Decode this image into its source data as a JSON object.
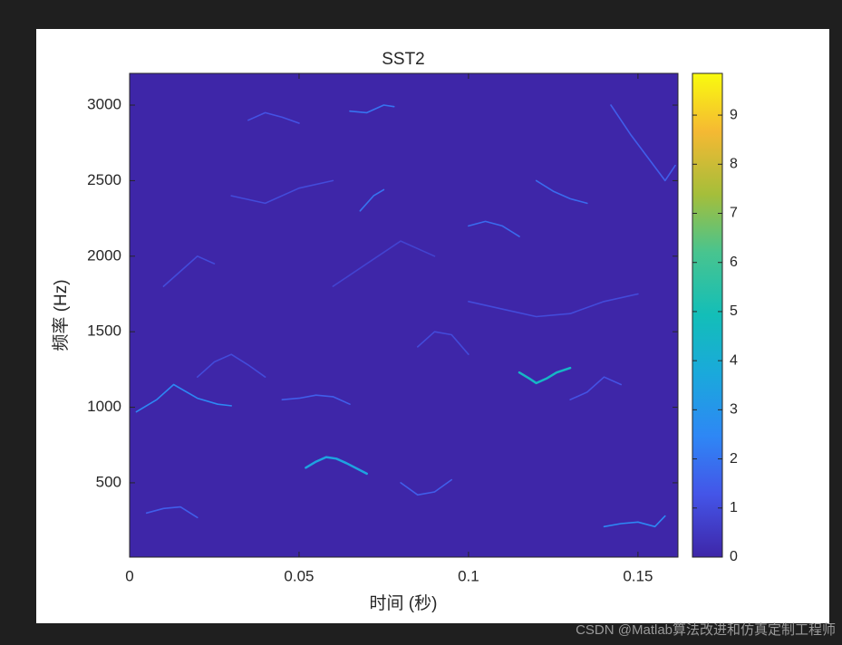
{
  "chart_data": {
    "type": "spectrogram",
    "title": "SST2",
    "xlabel": "时间 (秒)",
    "ylabel": "频率 (Hz)",
    "xlim": [
      0,
      0.1618
    ],
    "ylim": [
      8,
      3210
    ],
    "xticks": [
      0,
      0.05,
      0.1,
      0.15
    ],
    "yticks": [
      500,
      1000,
      1500,
      2000,
      2500,
      3000
    ],
    "colormap": "parula",
    "clim": [
      0,
      9.85
    ],
    "cticks": [
      0,
      1,
      2,
      3,
      4,
      5,
      6,
      7,
      8,
      9
    ],
    "ridges": [
      {
        "x": [
          0.002,
          0.008,
          0.013,
          0.02,
          0.026,
          0.03
        ],
        "y": [
          970,
          1050,
          1150,
          1060,
          1020,
          1010
        ],
        "value": 2.5
      },
      {
        "x": [
          0.052,
          0.055,
          0.058,
          0.061,
          0.064,
          0.07
        ],
        "y": [
          600,
          640,
          670,
          660,
          630,
          560
        ],
        "value": 3.5
      },
      {
        "x": [
          0.115,
          0.118,
          0.12,
          0.123,
          0.126,
          0.13
        ],
        "y": [
          1230,
          1190,
          1160,
          1190,
          1230,
          1260
        ],
        "value": 4.5
      },
      {
        "x": [
          0.065,
          0.07,
          0.075,
          0.078
        ],
        "y": [
          2960,
          2950,
          3000,
          2990
        ],
        "value": 2
      },
      {
        "x": [
          0.14,
          0.145,
          0.15,
          0.155,
          0.158
        ],
        "y": [
          210,
          230,
          240,
          210,
          280
        ],
        "value": 2.5
      },
      {
        "x": [
          0.045,
          0.05,
          0.055,
          0.06,
          0.065
        ],
        "y": [
          1050,
          1060,
          1080,
          1070,
          1020
        ],
        "value": 1.5
      },
      {
        "x": [
          0.1,
          0.105,
          0.11,
          0.115
        ],
        "y": [
          2200,
          2230,
          2200,
          2130
        ],
        "value": 1.8
      },
      {
        "x": [
          0.142,
          0.148,
          0.153,
          0.158,
          0.161
        ],
        "y": [
          3000,
          2800,
          2650,
          2500,
          2600
        ],
        "value": 1.5
      },
      {
        "x": [
          0.068,
          0.072,
          0.075
        ],
        "y": [
          2300,
          2400,
          2440
        ],
        "value": 2
      },
      {
        "x": [
          0.12,
          0.125,
          0.13,
          0.135
        ],
        "y": [
          2500,
          2430,
          2380,
          2350
        ],
        "value": 1.8
      },
      {
        "x": [
          0.02,
          0.025,
          0.03,
          0.035,
          0.04
        ],
        "y": [
          1200,
          1300,
          1350,
          1280,
          1200
        ],
        "value": 1
      },
      {
        "x": [
          0.085,
          0.09,
          0.095,
          0.1
        ],
        "y": [
          1400,
          1500,
          1480,
          1350
        ],
        "value": 1
      },
      {
        "x": [
          0.08,
          0.085,
          0.09,
          0.095
        ],
        "y": [
          500,
          420,
          440,
          520
        ],
        "value": 1.5
      },
      {
        "x": [
          0.005,
          0.01,
          0.015,
          0.02
        ],
        "y": [
          300,
          330,
          340,
          270
        ],
        "value": 1.5
      },
      {
        "x": [
          0.035,
          0.04,
          0.045,
          0.05
        ],
        "y": [
          2900,
          2950,
          2920,
          2880
        ],
        "value": 1.2
      },
      {
        "x": [
          0.01,
          0.015,
          0.02,
          0.025
        ],
        "y": [
          1800,
          1900,
          2000,
          1950
        ],
        "value": 1
      },
      {
        "x": [
          0.1,
          0.11,
          0.12,
          0.13,
          0.14,
          0.15
        ],
        "y": [
          1700,
          1650,
          1600,
          1620,
          1700,
          1750
        ],
        "value": 1
      },
      {
        "x": [
          0.06,
          0.07,
          0.08,
          0.09
        ],
        "y": [
          1800,
          1950,
          2100,
          2000
        ],
        "value": 0.8
      },
      {
        "x": [
          0.13,
          0.135,
          0.14,
          0.145
        ],
        "y": [
          1050,
          1100,
          1200,
          1150
        ],
        "value": 1.2
      },
      {
        "x": [
          0.03,
          0.04,
          0.05,
          0.06
        ],
        "y": [
          2400,
          2350,
          2450,
          2500
        ],
        "value": 1
      }
    ]
  },
  "watermark": "CSDN @Matlab算法改进和仿真定制工程师"
}
